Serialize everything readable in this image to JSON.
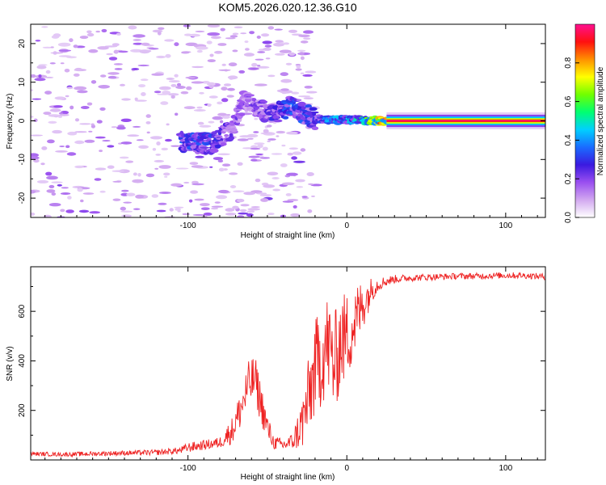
{
  "title": "KOM5.2026.020.12.36.G10",
  "colors": {
    "snr_line": "#ee2222",
    "axis": "#000000",
    "background": "#ffffff"
  },
  "chart_data": [
    {
      "type": "heatmap",
      "name": "spectrogram",
      "xlabel": "Height of straight line (km)",
      "ylabel": "Frequency (Hz)",
      "xlim": [
        -199,
        125
      ],
      "ylim": [
        -25,
        25
      ],
      "xticks": [
        -100,
        0,
        100
      ],
      "yticks": [
        -20,
        -10,
        0,
        10,
        20
      ],
      "colorbar": {
        "label": "Normalized spectral amplitude",
        "range": [
          0,
          1
        ],
        "ticks": [
          0.0,
          0.2,
          0.4,
          0.6,
          0.8
        ],
        "colormap": [
          "#ffffff",
          "#d2a8f0",
          "#9a4ff0",
          "#3a1ae0",
          "#1a6cff",
          "#00d0ff",
          "#00ff70",
          "#70ff00",
          "#ffff00",
          "#ff9000",
          "#ff1010",
          "#ff1090"
        ]
      },
      "description_ridge": {
        "points": [
          {
            "x": -105,
            "f": -5.5,
            "a": 0.35
          },
          {
            "x": -85,
            "f": -6,
            "a": 0.3
          },
          {
            "x": -72,
            "f": -2,
            "a": 0.22
          },
          {
            "x": -65,
            "f": 5,
            "a": 0.2
          },
          {
            "x": -55,
            "f": 3,
            "a": 0.22
          },
          {
            "x": -45,
            "f": 2,
            "a": 0.3
          },
          {
            "x": -35,
            "f": 4,
            "a": 0.35
          },
          {
            "x": -20,
            "f": 0.5,
            "a": 0.3
          },
          {
            "x": -10,
            "f": 0.3,
            "a": 0.45
          },
          {
            "x": 5,
            "f": 0.2,
            "a": 0.45
          },
          {
            "x": 18,
            "f": 0,
            "a": 0.7
          },
          {
            "x": 25,
            "f": 0,
            "a": 1.0
          },
          {
            "x": 125,
            "f": 0,
            "a": 1.0
          }
        ]
      }
    },
    {
      "type": "line",
      "name": "snr",
      "xlabel": "Height of straight line (km)",
      "ylabel": "SNR (v/v)",
      "xlim": [
        -199,
        125
      ],
      "ylim": [
        0,
        780
      ],
      "xticks": [
        -100,
        0,
        100
      ],
      "yticks": [
        200,
        400,
        600
      ],
      "series": [
        {
          "name": "SNR",
          "x": [
            -199,
            -180,
            -160,
            -140,
            -120,
            -105,
            -100,
            -90,
            -80,
            -72,
            -66,
            -62,
            -58,
            -54,
            -50,
            -46,
            -40,
            -34,
            -28,
            -24,
            -20,
            -16,
            -12,
            -8,
            -4,
            0,
            4,
            8,
            12,
            16,
            20,
            24,
            30,
            40,
            50,
            60,
            70,
            80,
            90,
            100,
            110,
            125
          ],
          "y": [
            25,
            22,
            25,
            28,
            30,
            38,
            50,
            60,
            70,
            120,
            220,
            300,
            330,
            230,
            130,
            70,
            60,
            75,
            150,
            250,
            370,
            420,
            470,
            380,
            480,
            500,
            540,
            600,
            650,
            690,
            710,
            720,
            730,
            735,
            738,
            740,
            742,
            742,
            744,
            745,
            745,
            740
          ],
          "noise": [
            6,
            6,
            7,
            7,
            8,
            10,
            14,
            14,
            16,
            40,
            60,
            70,
            70,
            60,
            40,
            20,
            18,
            25,
            80,
            120,
            140,
            150,
            150,
            150,
            140,
            130,
            110,
            90,
            60,
            35,
            20,
            15,
            12,
            10,
            10,
            9,
            9,
            9,
            9,
            9,
            9,
            9
          ]
        }
      ]
    }
  ]
}
